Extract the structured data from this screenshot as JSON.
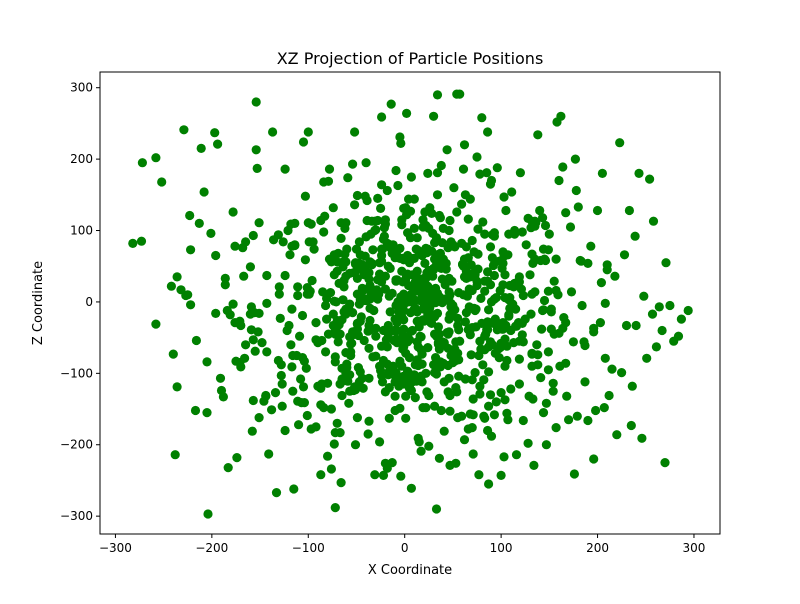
{
  "chart_data": {
    "type": "scatter",
    "title": "XZ Projection of Particle Positions",
    "xlabel": "X Coordinate",
    "ylabel": "Z Coordinate",
    "xlim": [
      -316,
      327
    ],
    "ylim": [
      -325,
      322
    ],
    "xticks": [
      -300,
      -200,
      -100,
      0,
      100,
      200,
      300
    ],
    "yticks": [
      -300,
      -200,
      -100,
      0,
      100,
      200,
      300
    ],
    "xtick_labels": [
      "−300",
      "−200",
      "−100",
      "0",
      "100",
      "200",
      "300"
    ],
    "ytick_labels": [
      "−300",
      "−200",
      "−100",
      "0",
      "100",
      "200",
      "300"
    ],
    "grid": false,
    "legend": "none",
    "marker_color": "#008000",
    "point_count": 1000,
    "points": [
      [
        -282,
        82
      ],
      [
        -272,
        195
      ],
      [
        -258,
        202
      ],
      [
        -252,
        168
      ],
      [
        -258,
        -31
      ],
      [
        -242,
        22
      ],
      [
        -240,
        -73
      ],
      [
        -236,
        35
      ],
      [
        -232,
        17
      ],
      [
        -236,
        -119
      ],
      [
        -238,
        -214
      ],
      [
        -229,
        241
      ],
      [
        -223,
        121
      ],
      [
        -222,
        -4
      ],
      [
        -217,
        -152
      ],
      [
        -216,
        -54
      ],
      [
        -213,
        110
      ],
      [
        -211,
        215
      ],
      [
        -208,
        154
      ],
      [
        -205,
        -155
      ],
      [
        -204,
        -297
      ],
      [
        -201,
        96
      ],
      [
        -197,
        237
      ],
      [
        -196,
        65
      ],
      [
        -196,
        -16
      ],
      [
        -194,
        221
      ],
      [
        -190,
        -124
      ],
      [
        -188,
        -133
      ],
      [
        -186,
        24
      ],
      [
        -186,
        33
      ],
      [
        -184,
        -12
      ],
      [
        -183,
        -232
      ],
      [
        -181,
        -18
      ],
      [
        -178,
        126
      ],
      [
        -176,
        -29
      ],
      [
        -175,
        -83
      ],
      [
        -171,
        -85
      ],
      [
        -170,
        -33
      ],
      [
        -168,
        76
      ],
      [
        -167,
        36
      ],
      [
        -165,
        84
      ],
      [
        -160,
        49
      ],
      [
        -158,
        -181
      ],
      [
        -157,
        -138
      ],
      [
        -154,
        280
      ],
      [
        -154,
        213
      ],
      [
        -153,
        187
      ],
      [
        -151,
        111
      ],
      [
        -148,
        -57
      ],
      [
        -146,
        -139
      ],
      [
        -143,
        37
      ],
      [
        -141,
        -213
      ],
      [
        -138,
        -151
      ],
      [
        -137,
        238
      ],
      [
        -134,
        -127
      ],
      [
        -133,
        -267
      ],
      [
        -131,
        -82
      ],
      [
        -128,
        -103
      ],
      [
        -127,
        -115
      ],
      [
        -124,
        186
      ],
      [
        -121,
        100
      ],
      [
        -119,
        66
      ],
      [
        -117,
        -10
      ],
      [
        -115,
        -262
      ],
      [
        -111,
        -139
      ],
      [
        -110,
        -172
      ],
      [
        -107,
        -141
      ],
      [
        -105,
        224
      ],
      [
        -103,
        148
      ],
      [
        -100,
        238
      ],
      [
        -101,
        20
      ],
      [
        -96,
        30
      ],
      [
        -94,
        74
      ],
      [
        -92,
        -175
      ],
      [
        -90,
        -57
      ],
      [
        -87,
        -242
      ],
      [
        -86,
        -115
      ],
      [
        -83,
        120
      ],
      [
        -82,
        -5
      ],
      [
        -80,
        -216
      ],
      [
        -79,
        169
      ],
      [
        -78,
        186
      ],
      [
        -76,
        -234
      ],
      [
        -74,
        132
      ],
      [
        -73,
        66
      ],
      [
        -72,
        -84
      ],
      [
        -70,
        -170
      ],
      [
        -68,
        -32
      ],
      [
        -67,
        -115
      ],
      [
        -66,
        -253
      ],
      [
        -63,
        30
      ],
      [
        -61,
        111
      ],
      [
        -60,
        -92
      ],
      [
        -58,
        -142
      ],
      [
        -56,
        -70
      ],
      [
        -54,
        193
      ],
      [
        -52,
        238
      ],
      [
        -51,
        -200
      ],
      [
        -49,
        -162
      ],
      [
        -47,
        54
      ],
      [
        -45,
        -21
      ],
      [
        -43,
        -121
      ],
      [
        -41,
        2
      ],
      [
        -39,
        142
      ],
      [
        -37,
        -167
      ],
      [
        -35,
        95
      ],
      [
        -33,
        -77
      ],
      [
        -31,
        -242
      ],
      [
        -30,
        -37
      ],
      [
        -28,
        114
      ],
      [
        -26,
        -196
      ],
      [
        -24,
        -62
      ],
      [
        -23,
        74
      ],
      [
        -22,
        -243
      ],
      [
        -20,
        36
      ],
      [
        -18,
        -233
      ],
      [
        -16,
        -120
      ],
      [
        -14,
        277
      ],
      [
        -12,
        80
      ],
      [
        -11,
        -54
      ],
      [
        -10,
        -152
      ],
      [
        -9,
        184
      ],
      [
        -7,
        -24
      ],
      [
        -5,
        231
      ],
      [
        -4,
        222
      ],
      [
        -3,
        -90
      ],
      [
        -1,
        59
      ],
      [
        1,
        -163
      ],
      [
        2,
        264
      ],
      [
        3,
        4
      ],
      [
        5,
        -121
      ],
      [
        6,
        90
      ],
      [
        7,
        -261
      ],
      [
        8,
        -40
      ],
      [
        10,
        144
      ],
      [
        12,
        -111
      ],
      [
        14,
        33
      ],
      [
        15,
        -196
      ],
      [
        17,
        -67
      ],
      [
        19,
        115
      ],
      [
        20,
        -10
      ],
      [
        22,
        -148
      ],
      [
        24,
        180
      ],
      [
        25,
        -202
      ],
      [
        27,
        -29
      ],
      [
        28,
        71
      ],
      [
        30,
        260
      ],
      [
        31,
        -99
      ],
      [
        33,
        -290
      ],
      [
        34,
        290
      ],
      [
        36,
        -219
      ],
      [
        37,
        118
      ],
      [
        39,
        -56
      ],
      [
        41,
        -181
      ],
      [
        42,
        24
      ],
      [
        44,
        213
      ],
      [
        45,
        -126
      ],
      [
        47,
        -229
      ],
      [
        48,
        84
      ],
      [
        50,
        -5
      ],
      [
        51,
        160
      ],
      [
        53,
        -226
      ],
      [
        54,
        291
      ],
      [
        56,
        -39
      ],
      [
        57,
        291
      ],
      [
        59,
        -160
      ],
      [
        60,
        52
      ],
      [
        62,
        220
      ],
      [
        63,
        -108
      ],
      [
        65,
        8
      ],
      [
        66,
        -178
      ],
      [
        68,
        144
      ],
      [
        69,
        -74
      ],
      [
        71,
        -213
      ],
      [
        72,
        70
      ],
      [
        74,
        -10
      ],
      [
        75,
        203
      ],
      [
        77,
        -242
      ],
      [
        78,
        -129
      ],
      [
        80,
        258
      ],
      [
        81,
        112
      ],
      [
        83,
        -163
      ],
      [
        84,
        -45
      ],
      [
        86,
        238
      ],
      [
        87,
        -255
      ],
      [
        89,
        165
      ],
      [
        90,
        -188
      ],
      [
        92,
        -30
      ],
      [
        93,
        92
      ],
      [
        95,
        -140
      ],
      [
        96,
        188
      ],
      [
        98,
        -78
      ],
      [
        99,
        16
      ],
      [
        100,
        -243
      ],
      [
        102,
        70
      ],
      [
        103,
        -217
      ],
      [
        105,
        128
      ],
      [
        107,
        -165
      ],
      [
        108,
        -20
      ],
      [
        110,
        -122
      ],
      [
        111,
        154
      ],
      [
        113,
        -57
      ],
      [
        114,
        100
      ],
      [
        116,
        -214
      ],
      [
        117,
        27
      ],
      [
        119,
        -115
      ],
      [
        120,
        181
      ],
      [
        122,
        -46
      ],
      [
        123,
        -166
      ],
      [
        125,
        -24
      ],
      [
        126,
        80
      ],
      [
        128,
        -198
      ],
      [
        129,
        -132
      ],
      [
        131,
        104
      ],
      [
        132,
        -90
      ],
      [
        134,
        -229
      ],
      [
        135,
        14
      ],
      [
        137,
        -60
      ],
      [
        138,
        234
      ],
      [
        140,
        128
      ],
      [
        141,
        -106
      ],
      [
        143,
        -12
      ],
      [
        144,
        -155
      ],
      [
        146,
        58
      ],
      [
        147,
        -200
      ],
      [
        149,
        -70
      ],
      [
        150,
        95
      ],
      [
        152,
        -38
      ],
      [
        154,
        -125
      ],
      [
        155,
        29
      ],
      [
        157,
        -176
      ],
      [
        158,
        252
      ],
      [
        160,
        170
      ],
      [
        161,
        -90
      ],
      [
        162,
        260
      ],
      [
        164,
        189
      ],
      [
        165,
        -22
      ],
      [
        167,
        125
      ],
      [
        168,
        -132
      ],
      [
        170,
        -165
      ],
      [
        172,
        105
      ],
      [
        173,
        14
      ],
      [
        175,
        -56
      ],
      [
        176,
        -241
      ],
      [
        177,
        200
      ],
      [
        179,
        -160
      ],
      [
        182,
        58
      ],
      [
        184,
        -5
      ],
      [
        187,
        -112
      ],
      [
        190,
        -166
      ],
      [
        193,
        78
      ],
      [
        196,
        -37
      ],
      [
        198,
        -152
      ],
      [
        200,
        128
      ],
      [
        203,
        -29
      ],
      [
        205,
        180
      ],
      [
        208,
        -79
      ],
      [
        210,
        52
      ],
      [
        212,
        -131
      ],
      [
        215,
        -94
      ],
      [
        218,
        36
      ],
      [
        220,
        -186
      ],
      [
        223,
        223
      ],
      [
        225,
        -99
      ],
      [
        228,
        66
      ],
      [
        230,
        -33
      ],
      [
        233,
        128
      ],
      [
        236,
        -118
      ],
      [
        239,
        92
      ],
      [
        243,
        180
      ],
      [
        246,
        -191
      ],
      [
        248,
        8
      ],
      [
        251,
        -79
      ],
      [
        254,
        172
      ],
      [
        257,
        -17
      ],
      [
        258,
        113
      ],
      [
        261,
        -63
      ],
      [
        264,
        -7
      ],
      [
        267,
        -40
      ],
      [
        270,
        -225
      ],
      [
        275,
        -5
      ],
      [
        279,
        -55
      ],
      [
        284,
        -48
      ],
      [
        287,
        -24
      ],
      [
        294,
        -12
      ]
    ]
  },
  "page": {
    "bg": "#ffffff"
  }
}
